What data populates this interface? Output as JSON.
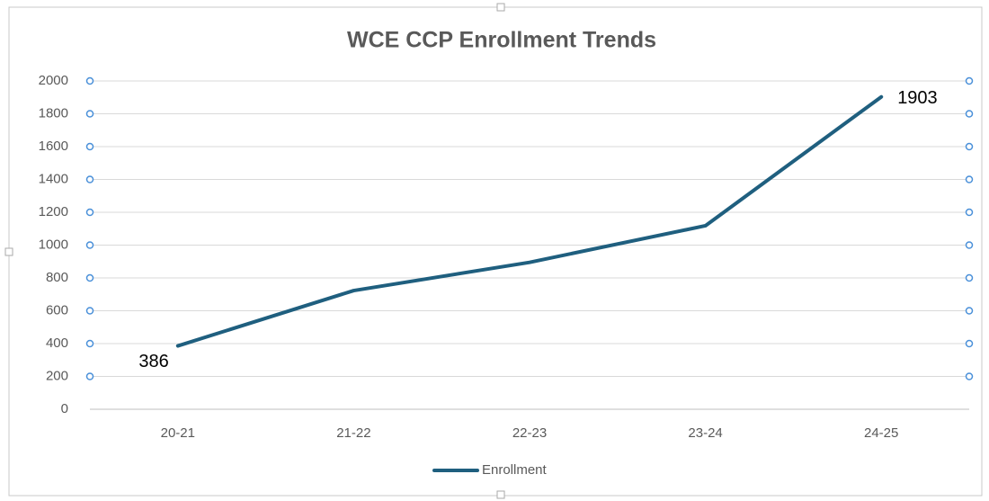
{
  "chart_data": {
    "type": "line",
    "title": "WCE CCP Enrollment Trends",
    "categories": [
      "20-21",
      "21-22",
      "22-23",
      "23-24",
      "24-25"
    ],
    "series": [
      {
        "name": "Enrollment",
        "color": "#1f5f7f",
        "values": [
          386,
          723,
          895,
          1118,
          1903
        ],
        "value_labels": [
          "386",
          null,
          null,
          null,
          "1903"
        ]
      }
    ],
    "ylim": [
      0,
      2000
    ],
    "yticks": [
      0,
      200,
      400,
      600,
      800,
      1000,
      1200,
      1400,
      1600,
      1800,
      2000
    ],
    "grid": true,
    "legend": "bottom"
  }
}
